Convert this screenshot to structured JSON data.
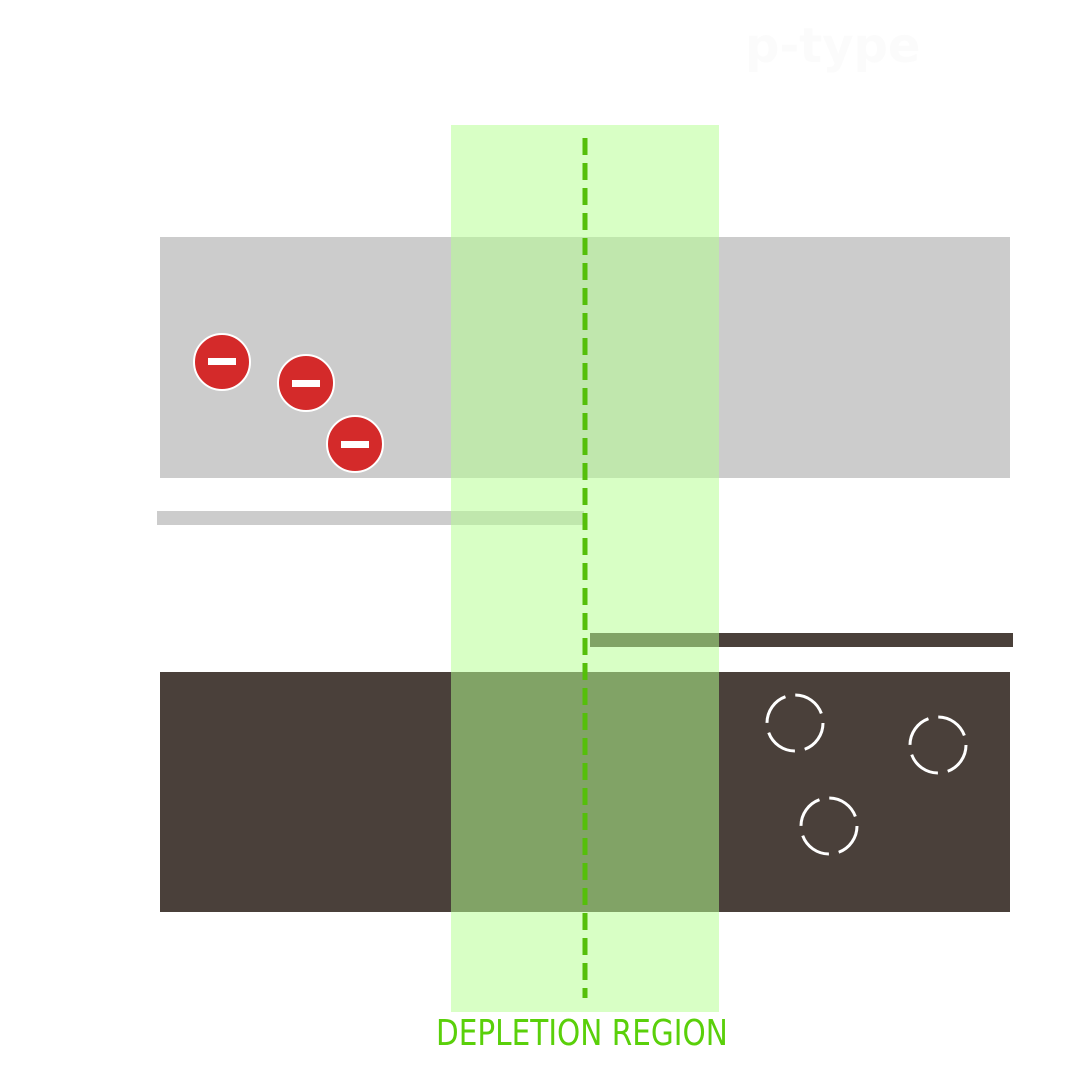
{
  "labels": {
    "region_label": "p-type",
    "depletion_label": "DEPLETION REGION"
  },
  "colors": {
    "conduction_band": "#cccccc",
    "valence_band": "#4a403a",
    "depletion_fill": "#d9ffc4",
    "junction_line": "#55bf0a",
    "electron": "#d42a2a",
    "hole_outline": "#ffffff",
    "label_text": "#5ad00a",
    "ptype_text": "#fbfbfb"
  },
  "electrons": {
    "count": 3,
    "charge_symbol": "minus"
  },
  "holes": {
    "count": 3
  }
}
